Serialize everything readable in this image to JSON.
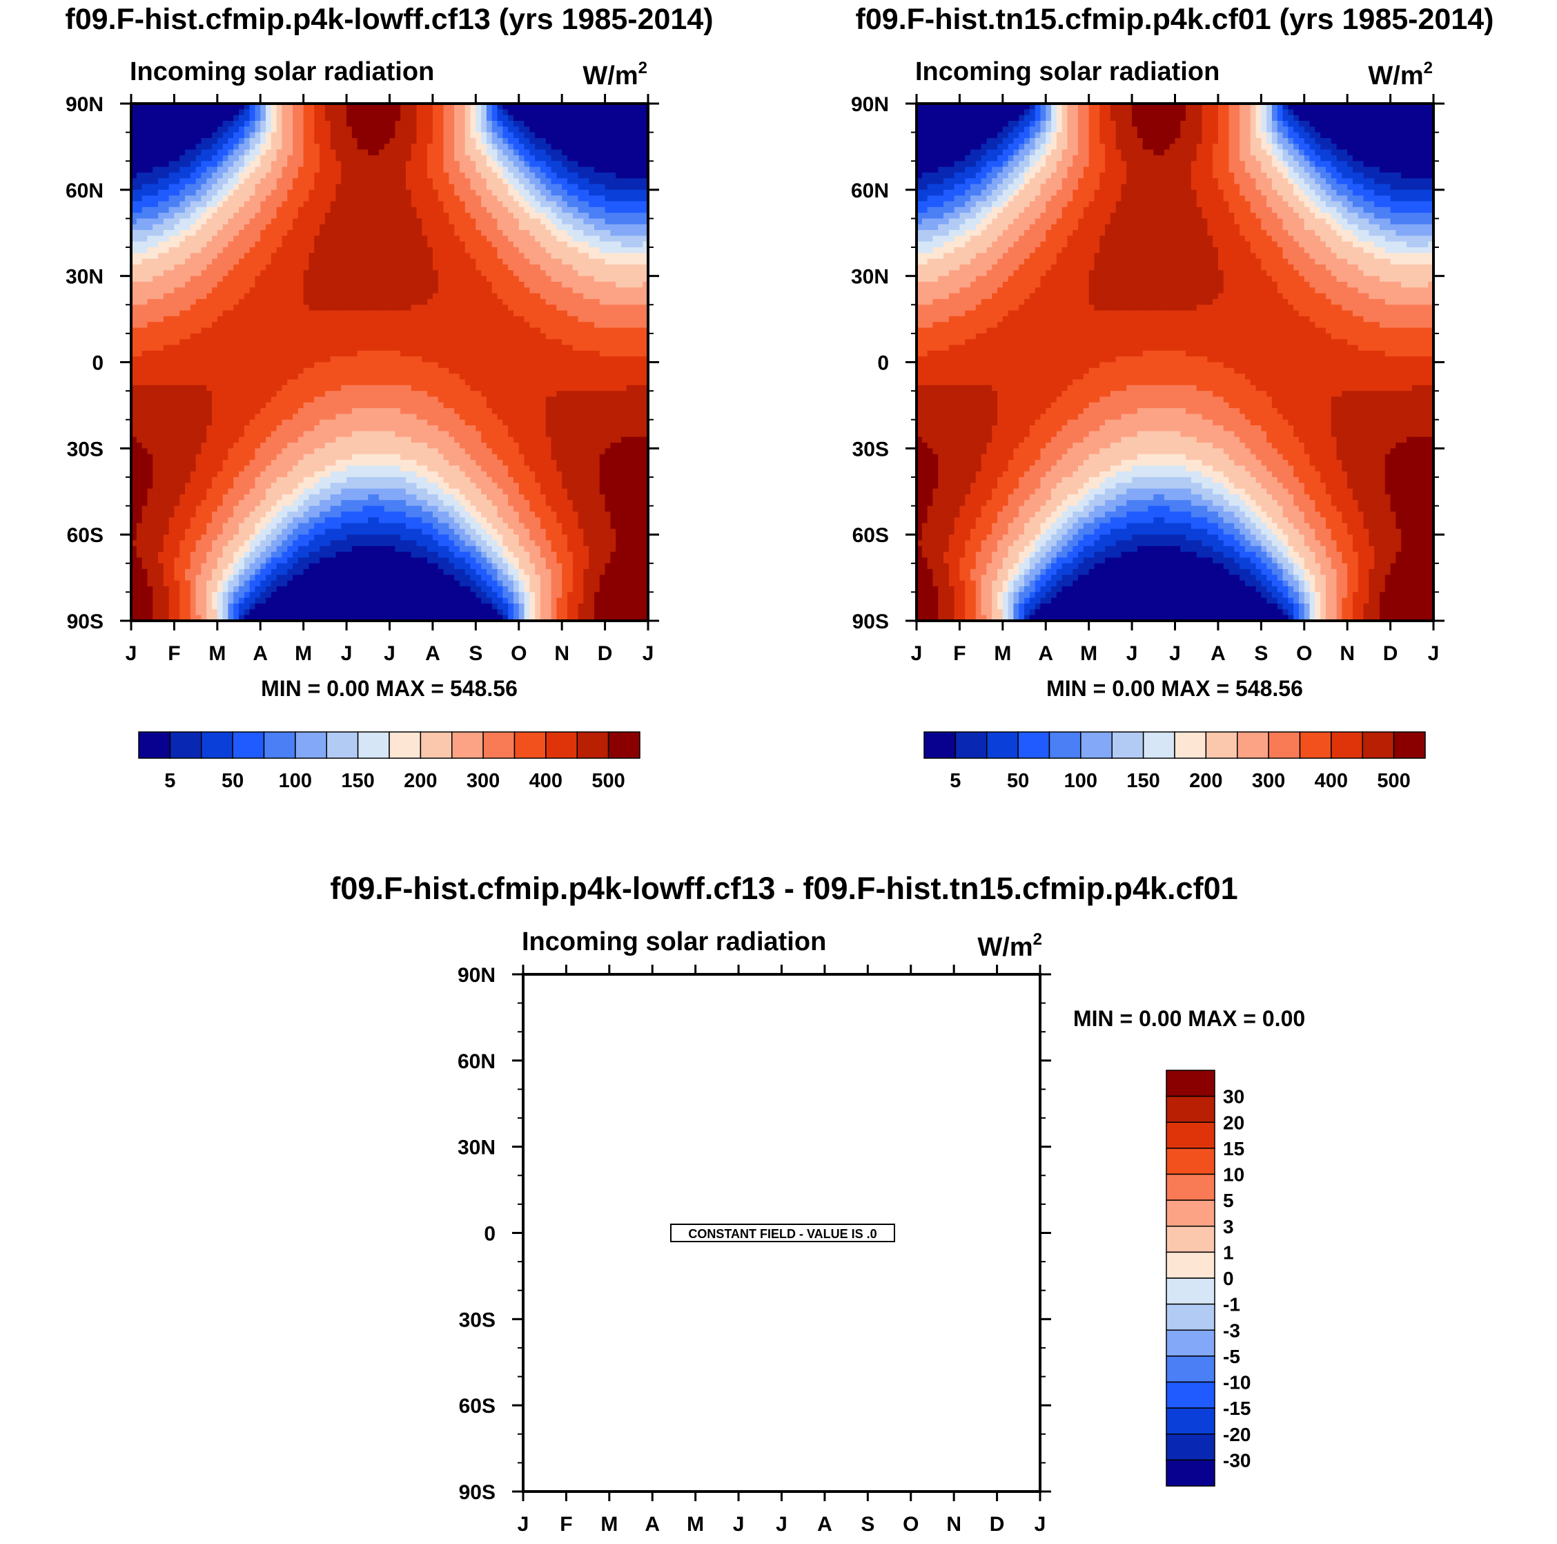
{
  "panels": [
    {
      "title": "f09.F-hist.cfmip.p4k-lowff.cf13 (yrs 1985-2014)",
      "subtitle_left": "Incoming solar radiation",
      "units": "W/m",
      "units_sup": "2",
      "min_max": "MIN =   0.00 MAX = 548.56",
      "chart_type": "heatmap"
    },
    {
      "title": "f09.F-hist.tn15.cfmip.p4k.cf01 (yrs 1985-2014)",
      "subtitle_left": "Incoming solar radiation",
      "units": "W/m",
      "units_sup": "2",
      "min_max": "MIN =   0.00 MAX = 548.56",
      "chart_type": "heatmap"
    },
    {
      "title": "f09.F-hist.cfmip.p4k-lowff.cf13 - f09.F-hist.tn15.cfmip.p4k.cf01",
      "subtitle_left": "Incoming solar radiation",
      "units": "W/m",
      "units_sup": "2",
      "min_max": "MIN =   0.00 MAX =   0.00",
      "constant_field_label": "CONSTANT FIELD - VALUE IS .0",
      "chart_type": "heatmap"
    }
  ],
  "chart_data": [
    {
      "type": "heatmap",
      "title": "f09.F-hist.cfmip.p4k-lowff.cf13 (yrs 1985-2014)",
      "variable": "Incoming solar radiation",
      "units": "W/m2",
      "x_ticks": [
        "J",
        "F",
        "M",
        "A",
        "M",
        "J",
        "J",
        "A",
        "S",
        "O",
        "N",
        "D",
        "J"
      ],
      "y_ticks": [
        "90N",
        "60N",
        "30N",
        "0",
        "30S",
        "60S",
        "90S"
      ],
      "ylim": [
        -90,
        90
      ],
      "min": 0.0,
      "max": 548.56,
      "levels": [
        5,
        25,
        50,
        75,
        100,
        125,
        150,
        175,
        200,
        250,
        300,
        350,
        400,
        450,
        500
      ],
      "colorbar_labels": [
        "5",
        "50",
        "100",
        "150",
        "200",
        "300",
        "400",
        "500"
      ]
    },
    {
      "type": "heatmap",
      "title": "f09.F-hist.tn15.cfmip.p4k.cf01 (yrs 1985-2014)",
      "variable": "Incoming solar radiation",
      "units": "W/m2",
      "x_ticks": [
        "J",
        "F",
        "M",
        "A",
        "M",
        "J",
        "J",
        "A",
        "S",
        "O",
        "N",
        "D",
        "J"
      ],
      "y_ticks": [
        "90N",
        "60N",
        "30N",
        "0",
        "30S",
        "60S",
        "90S"
      ],
      "ylim": [
        -90,
        90
      ],
      "min": 0.0,
      "max": 548.56,
      "levels": [
        5,
        25,
        50,
        75,
        100,
        125,
        150,
        175,
        200,
        250,
        300,
        350,
        400,
        450,
        500
      ],
      "colorbar_labels": [
        "5",
        "50",
        "100",
        "150",
        "200",
        "300",
        "400",
        "500"
      ]
    },
    {
      "type": "heatmap",
      "title": "f09.F-hist.cfmip.p4k-lowff.cf13 - f09.F-hist.tn15.cfmip.p4k.cf01",
      "variable": "Incoming solar radiation",
      "units": "W/m2",
      "x_ticks": [
        "J",
        "F",
        "M",
        "A",
        "M",
        "J",
        "J",
        "A",
        "S",
        "O",
        "N",
        "D",
        "J"
      ],
      "y_ticks": [
        "90N",
        "60N",
        "30N",
        "0",
        "30S",
        "60S",
        "90S"
      ],
      "ylim": [
        -90,
        90
      ],
      "min": 0.0,
      "max": 0.0,
      "constant_value": 0,
      "colorbar_labels": [
        "30",
        "20",
        "15",
        "10",
        "5",
        "3",
        "1",
        "0",
        "-1",
        "-3",
        "-5",
        "-10",
        "-15",
        "-20",
        "-30"
      ]
    }
  ],
  "colors": {
    "abs_palette": [
      "#08018f",
      "#0828b3",
      "#0a40d9",
      "#1f5bff",
      "#4a7ff5",
      "#82a8f7",
      "#b2cbf5",
      "#d6e6f7",
      "#fde6d4",
      "#fcc8ad",
      "#fca385",
      "#f97b55",
      "#f2511d",
      "#df340a",
      "#b81f03",
      "#8a0000"
    ],
    "diff_palette": [
      "#8a0000",
      "#b81f03",
      "#df340a",
      "#f2511d",
      "#f97b55",
      "#fca385",
      "#fcc8ad",
      "#fde6d4",
      "#d6e6f7",
      "#b2cbf5",
      "#82a8f7",
      "#4a7ff5",
      "#1f5bff",
      "#0a40d9",
      "#0828b3",
      "#08018f"
    ]
  }
}
